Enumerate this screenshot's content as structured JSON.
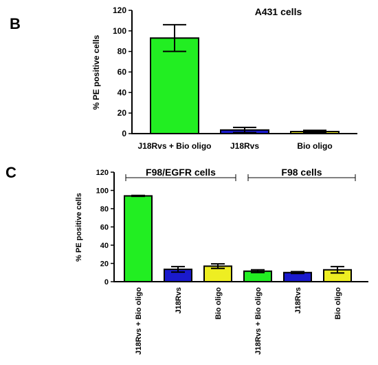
{
  "chart_data": [
    {
      "type": "bar",
      "panel_label": "B",
      "title": "A431 cells",
      "ylabel": "% PE positive cells",
      "xlabel": "",
      "ylim": [
        0,
        120
      ],
      "yticks": [
        0,
        20,
        40,
        60,
        80,
        100,
        120
      ],
      "categories": [
        "J18Rvs + Bio oligo",
        "J18Rvs",
        "Bio oligo"
      ],
      "values": [
        93,
        3.5,
        2
      ],
      "errors": [
        13,
        2.5,
        1.2
      ],
      "colors": [
        "#22ee22",
        "#1a1acc",
        "#eeee22"
      ],
      "grid": false
    },
    {
      "type": "bar",
      "panel_label": "C",
      "title": "",
      "ylabel": "% PE positive cells",
      "xlabel": "",
      "ylim": [
        0,
        120
      ],
      "yticks": [
        0,
        20,
        40,
        60,
        80,
        100,
        120
      ],
      "categories": [
        "J18Rvs + Bio oligo",
        "J18Rvs",
        "Bio oligo",
        "J18Rvs + Bio oligo",
        "J18Rvs",
        "Bio oligo"
      ],
      "values": [
        94,
        13.5,
        17,
        11.5,
        10,
        13
      ],
      "errors": [
        0.5,
        3,
        2.5,
        1.5,
        1,
        3.5
      ],
      "colors": [
        "#22ee22",
        "#1a1acc",
        "#eeee22",
        "#22ee22",
        "#1a1acc",
        "#eeee22"
      ],
      "group_labels": [
        "F98/EGFR cells",
        "F98 cells"
      ],
      "grid": false
    }
  ]
}
